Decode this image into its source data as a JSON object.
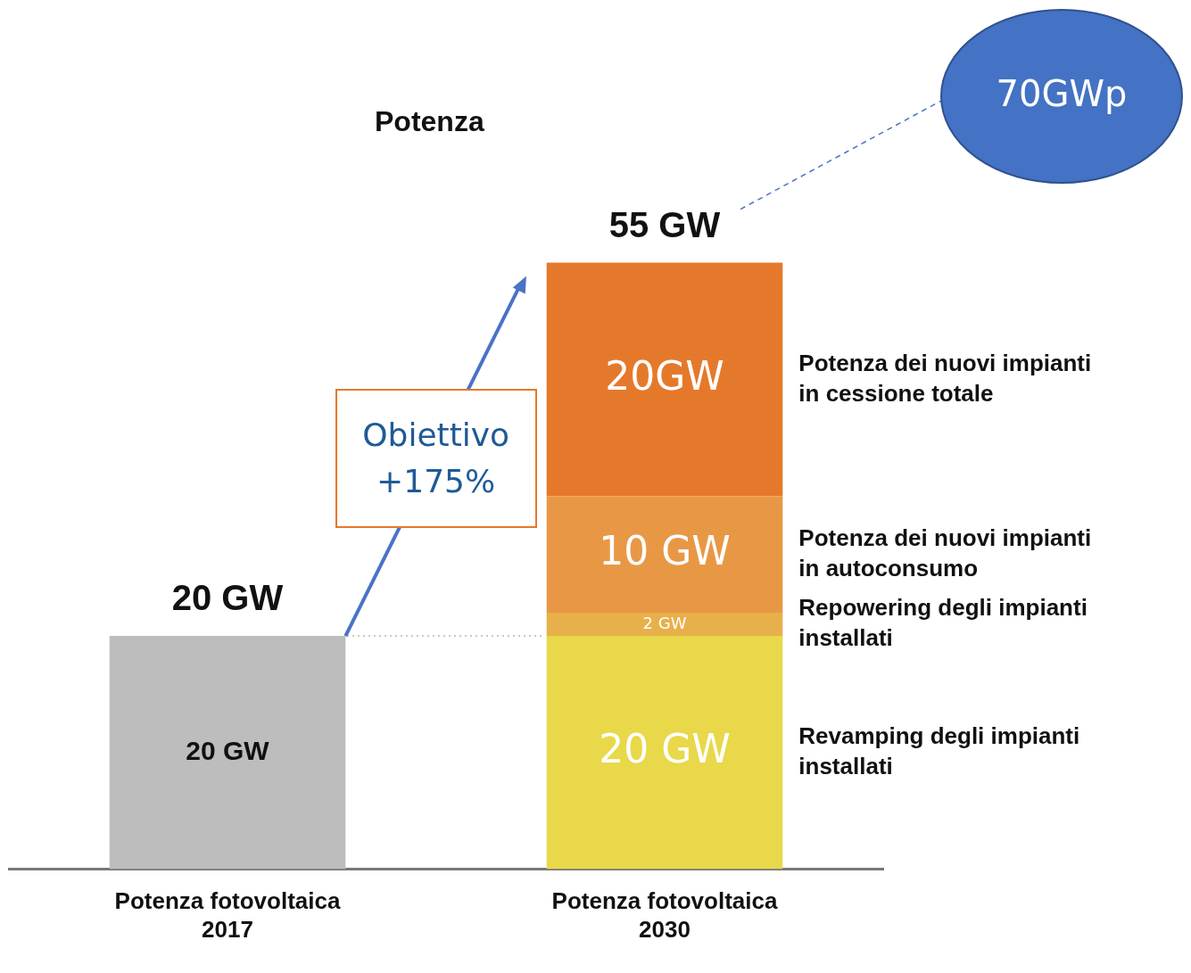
{
  "chart_data": {
    "type": "bar",
    "stacked": true,
    "categories": [
      "Potenza fotovoltaica 2017",
      "Potenza fotovoltaica 2030"
    ],
    "series": [
      {
        "color": "#bdbdbd",
        "values": [
          20,
          null
        ],
        "value_labels": [
          "20 GW",
          null
        ]
      },
      {
        "name": "Revamping degli impianti installati",
        "color": "#e8d84a",
        "values": [
          null,
          20
        ],
        "value_labels": [
          null,
          "20 GW"
        ]
      },
      {
        "name": "Repowering degli impianti installati",
        "color": "#e8b04a",
        "values": [
          null,
          2
        ],
        "value_labels": [
          null,
          "2 GW"
        ]
      },
      {
        "name": "Potenza dei nuovi impianti in autoconsumo",
        "color": "#e89845",
        "values": [
          null,
          10
        ],
        "value_labels": [
          null,
          "10 GW"
        ]
      },
      {
        "name": "Potenza dei nuovi impianti in cessione totale",
        "color": "#e5792b",
        "values": [
          null,
          20
        ],
        "value_labels": [
          null,
          "20GW"
        ]
      }
    ],
    "totals": [
      "20 GW",
      "55 GW"
    ],
    "ref_lines": [
      {
        "axis": "y",
        "value": 20,
        "color": "#c8ccb8",
        "line_style": "dotted"
      }
    ],
    "annotations": [
      "Potenza",
      "Obiettivo +175%",
      "70GWp"
    ],
    "grid": false,
    "legend": false
  }
}
